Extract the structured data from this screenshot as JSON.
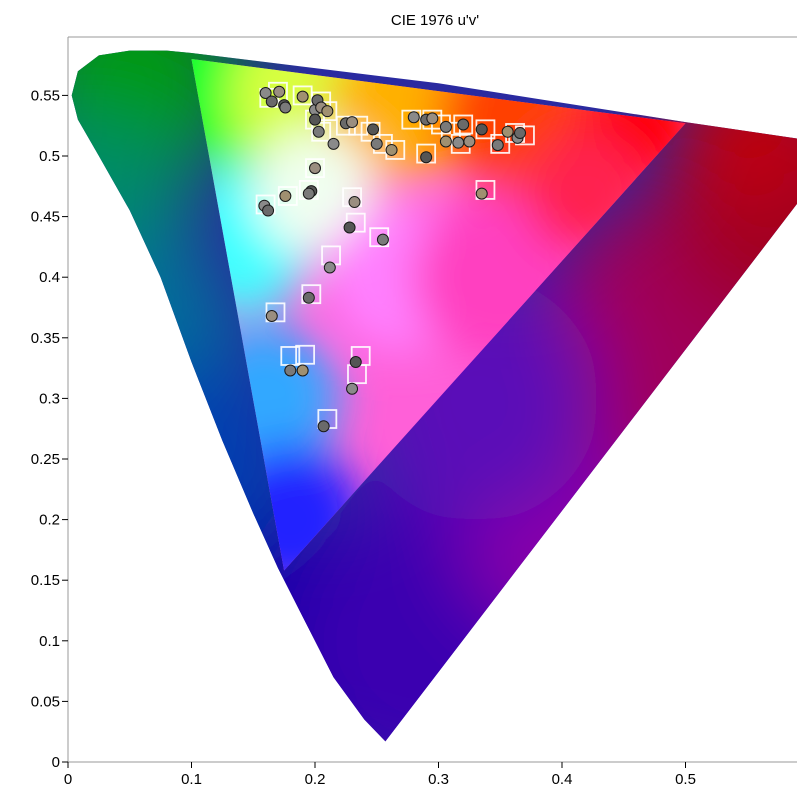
{
  "chart_data": {
    "type": "scatter",
    "title": "CIE 1976 u'v'",
    "xlabel": "",
    "ylabel": "",
    "xlim": [
      0,
      0.59
    ],
    "ylim": [
      0,
      0.6
    ],
    "grid": false,
    "x_ticks": [
      "0",
      "0.1",
      "0.2",
      "0.3",
      "0.4",
      "0.5"
    ],
    "y_ticks": [
      "0",
      "0.05",
      "0.1",
      "0.15",
      "0.2",
      "0.25",
      "0.3",
      "0.35",
      "0.4",
      "0.45",
      "0.5",
      "0.55"
    ],
    "gamut_triangle": [
      [
        0.1,
        0.58
      ],
      [
        0.5,
        0.527
      ],
      [
        0.175,
        0.158
      ]
    ],
    "series": [
      {
        "marker": "circle",
        "points": [
          [
            0.16,
            0.552
          ],
          [
            0.165,
            0.545
          ],
          [
            0.171,
            0.553
          ],
          [
            0.175,
            0.542
          ],
          [
            0.176,
            0.54
          ],
          [
            0.19,
            0.549
          ],
          [
            0.2,
            0.538
          ],
          [
            0.202,
            0.546
          ],
          [
            0.205,
            0.54
          ],
          [
            0.2,
            0.53
          ],
          [
            0.203,
            0.52
          ],
          [
            0.21,
            0.537
          ],
          [
            0.215,
            0.51
          ],
          [
            0.225,
            0.527
          ],
          [
            0.23,
            0.528
          ],
          [
            0.247,
            0.522
          ],
          [
            0.25,
            0.51
          ],
          [
            0.262,
            0.505
          ],
          [
            0.28,
            0.532
          ],
          [
            0.29,
            0.53
          ],
          [
            0.295,
            0.531
          ],
          [
            0.29,
            0.499
          ],
          [
            0.306,
            0.524
          ],
          [
            0.306,
            0.512
          ],
          [
            0.316,
            0.511
          ],
          [
            0.32,
            0.526
          ],
          [
            0.325,
            0.512
          ],
          [
            0.335,
            0.522
          ],
          [
            0.348,
            0.509
          ],
          [
            0.356,
            0.52
          ],
          [
            0.364,
            0.515
          ],
          [
            0.366,
            0.519
          ],
          [
            0.2,
            0.49
          ],
          [
            0.197,
            0.471
          ],
          [
            0.195,
            0.469
          ],
          [
            0.176,
            0.467
          ],
          [
            0.159,
            0.459
          ],
          [
            0.162,
            0.455
          ],
          [
            0.232,
            0.462
          ],
          [
            0.228,
            0.441
          ],
          [
            0.255,
            0.431
          ],
          [
            0.335,
            0.469
          ],
          [
            0.212,
            0.408
          ],
          [
            0.195,
            0.383
          ],
          [
            0.165,
            0.368
          ],
          [
            0.233,
            0.33
          ],
          [
            0.18,
            0.323
          ],
          [
            0.19,
            0.323
          ],
          [
            0.23,
            0.308
          ],
          [
            0.207,
            0.277
          ]
        ]
      },
      {
        "marker": "square",
        "points": [
          [
            0.163,
            0.548
          ],
          [
            0.17,
            0.553
          ],
          [
            0.19,
            0.55
          ],
          [
            0.205,
            0.545
          ],
          [
            0.21,
            0.537
          ],
          [
            0.2,
            0.53
          ],
          [
            0.205,
            0.52
          ],
          [
            0.225,
            0.525
          ],
          [
            0.235,
            0.525
          ],
          [
            0.245,
            0.52
          ],
          [
            0.255,
            0.51
          ],
          [
            0.265,
            0.505
          ],
          [
            0.278,
            0.53
          ],
          [
            0.295,
            0.53
          ],
          [
            0.302,
            0.526
          ],
          [
            0.31,
            0.52
          ],
          [
            0.32,
            0.526
          ],
          [
            0.318,
            0.51
          ],
          [
            0.338,
            0.522
          ],
          [
            0.35,
            0.51
          ],
          [
            0.362,
            0.519
          ],
          [
            0.37,
            0.517
          ],
          [
            0.29,
            0.502
          ],
          [
            0.2,
            0.49
          ],
          [
            0.195,
            0.472
          ],
          [
            0.16,
            0.46
          ],
          [
            0.178,
            0.467
          ],
          [
            0.23,
            0.466
          ],
          [
            0.233,
            0.445
          ],
          [
            0.252,
            0.433
          ],
          [
            0.338,
            0.472
          ],
          [
            0.213,
            0.418
          ],
          [
            0.197,
            0.386
          ],
          [
            0.168,
            0.371
          ],
          [
            0.18,
            0.335
          ],
          [
            0.192,
            0.336
          ],
          [
            0.237,
            0.335
          ],
          [
            0.234,
            0.32
          ],
          [
            0.21,
            0.283
          ]
        ]
      }
    ]
  }
}
